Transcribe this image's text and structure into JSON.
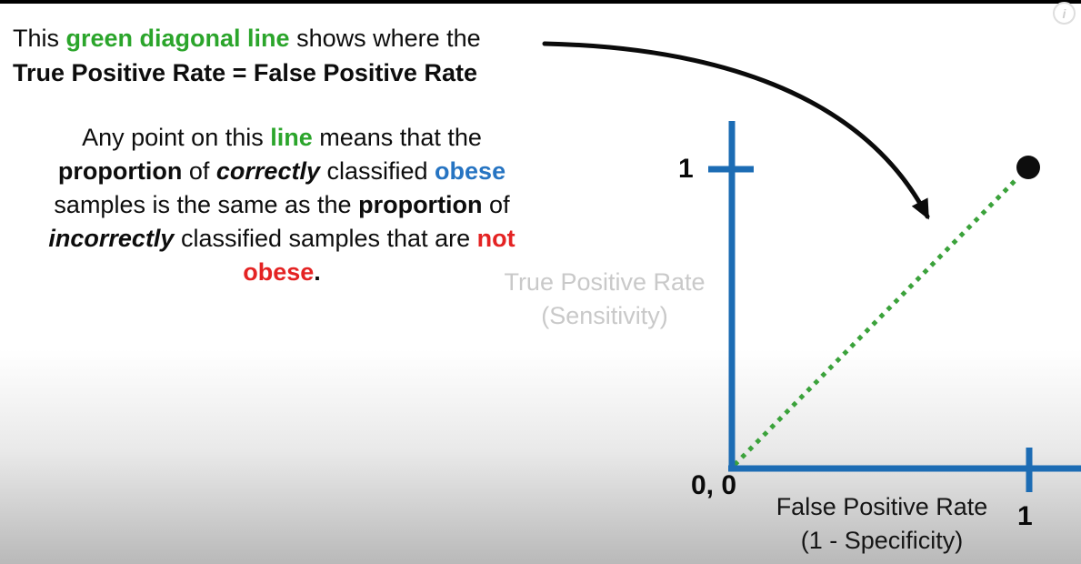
{
  "colors": {
    "green_text": "#2ba52b",
    "blue_text": "#2674c2",
    "red_text": "#e42323",
    "axis_blue": "#1c6cb4",
    "dot_green": "#3ba23b",
    "gray_label": "#c9c9c9",
    "arrow_black": "#0b0b0b",
    "point_black": "#0d0d0d"
  },
  "info_icon": {
    "glyph": "i"
  },
  "callout": {
    "lines": [
      [
        {
          "t": "This ",
          "s": "p"
        },
        {
          "t": "green diagonal line",
          "s": "g"
        },
        {
          "t": " shows where the",
          "s": "p"
        }
      ],
      [
        {
          "t": "True Positive Rate = False Positive Rate",
          "s": "b"
        }
      ]
    ]
  },
  "body_text": {
    "lines": [
      [
        {
          "t": "Any point on this ",
          "s": "p"
        },
        {
          "t": "line",
          "s": "g"
        },
        {
          "t": " means that the",
          "s": "p"
        }
      ],
      [
        {
          "t": "proportion",
          "s": "b"
        },
        {
          "t": " of ",
          "s": "p"
        },
        {
          "t": "correctly",
          "s": "bi"
        },
        {
          "t": " classified ",
          "s": "p"
        },
        {
          "t": "obese",
          "s": "bl"
        }
      ],
      [
        {
          "t": "samples is the same as the ",
          "s": "p"
        },
        {
          "t": "proportion",
          "s": "b"
        },
        {
          "t": " of",
          "s": "p"
        }
      ],
      [
        {
          "t": "incorrectly",
          "s": "bi"
        },
        {
          "t": " classified samples that are ",
          "s": "p"
        },
        {
          "t": "not",
          "s": "r"
        }
      ],
      [
        {
          "t": "obese",
          "s": "r"
        },
        {
          "t": ".",
          "s": "b"
        }
      ]
    ]
  },
  "chart": {
    "y_axis_title_line1": "True Positive Rate",
    "y_axis_title_line2": "(Sensitivity)",
    "x_axis_title_line1": "False Positive Rate",
    "x_axis_title_line2": "(1 - Specificity)",
    "origin_label": "0, 0",
    "y_tick_label": "1",
    "x_tick_label": "1"
  },
  "chart_data": {
    "type": "line",
    "title": "",
    "xlabel": "False Positive Rate (1 - Specificity)",
    "ylabel": "True Positive Rate (Sensitivity)",
    "xlim": [
      0,
      1
    ],
    "ylim": [
      0,
      1
    ],
    "x_tick_values": [
      0,
      1
    ],
    "y_tick_values": [
      0,
      1
    ],
    "grid": false,
    "legend_position": "none",
    "series": [
      {
        "name": "diagonal where TPR = FPR",
        "style": "dotted",
        "color": "#3ba23b",
        "x": [
          0,
          1
        ],
        "y": [
          0,
          1
        ]
      },
      {
        "name": "highlighted point",
        "style": "filled dot",
        "color": "#0d0d0d",
        "x": [
          1
        ],
        "y": [
          1
        ]
      }
    ],
    "annotations": [
      {
        "type": "curved-arrow",
        "from": "end of callout text (top-left)",
        "points_to": "green diagonal line"
      }
    ]
  }
}
